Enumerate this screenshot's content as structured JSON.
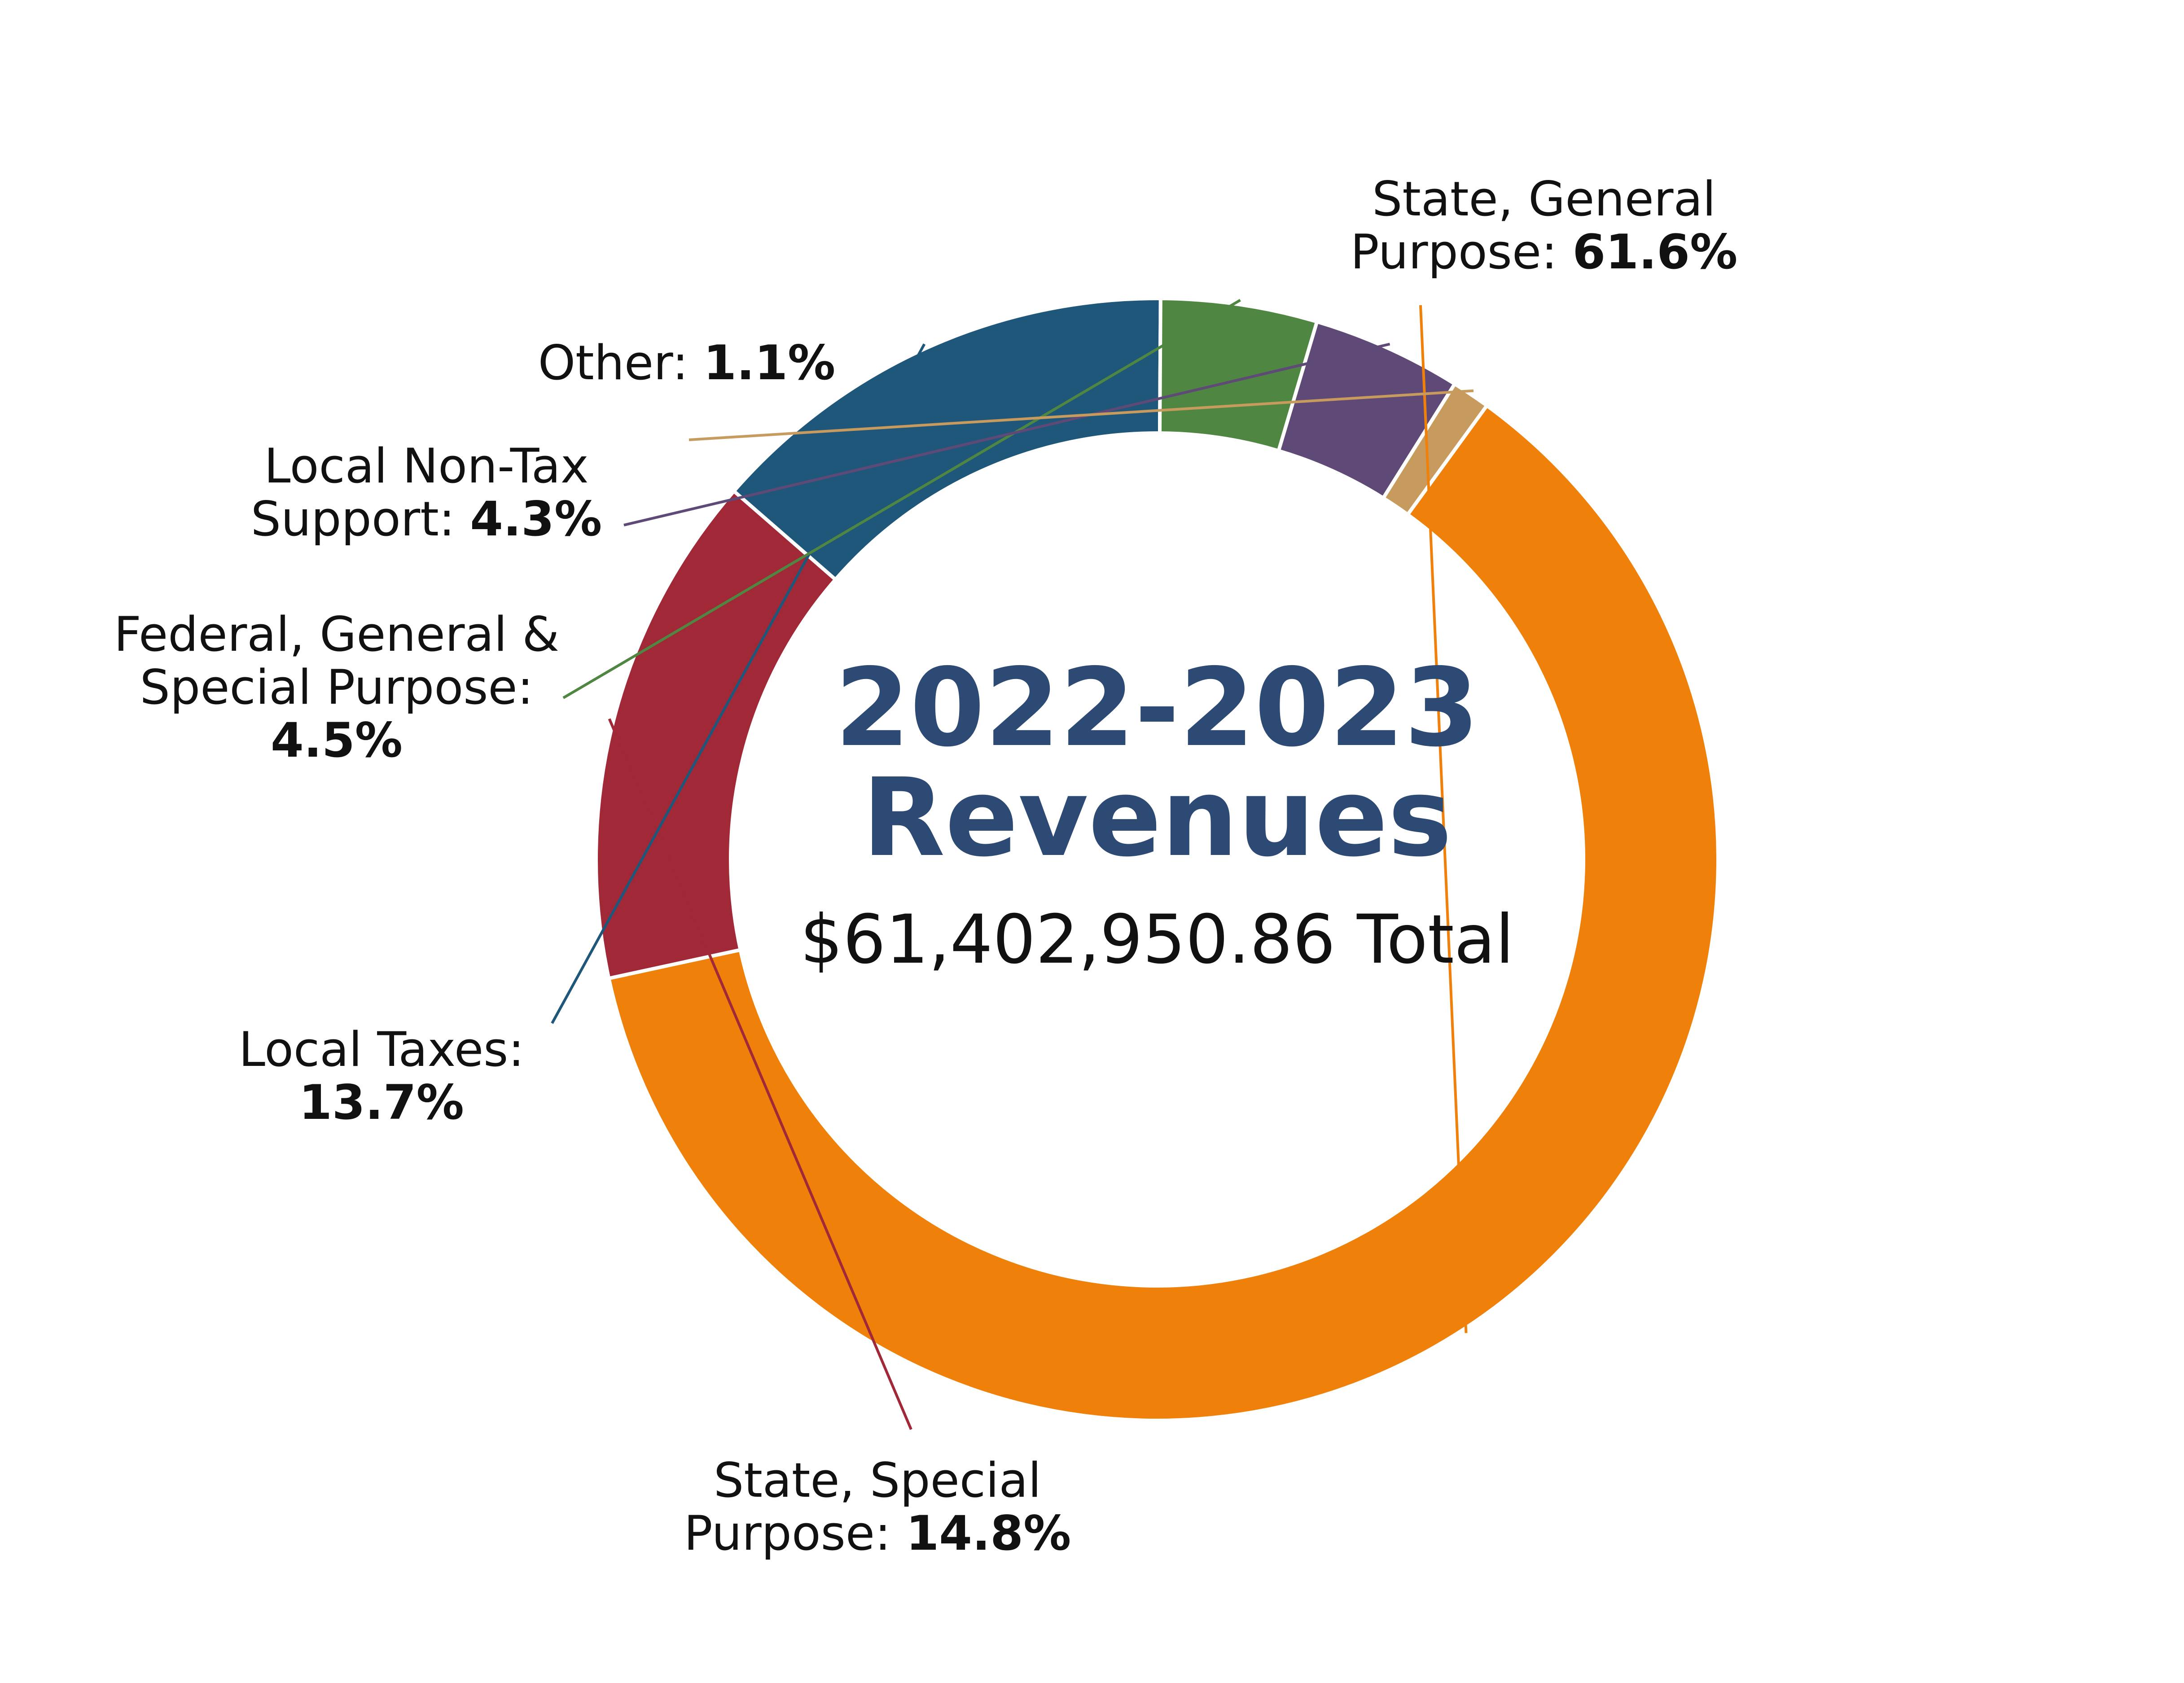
{
  "chart_data": {
    "type": "pie",
    "title_lines": [
      "2022-2023",
      "Revenues"
    ],
    "subtitle": "$61,402,950.86 Total",
    "slices": [
      {
        "label_lines": [
          "State, General",
          "Purpose: "
        ],
        "pct_text": "61.6%",
        "value": 61.6,
        "color": "#ef810b"
      },
      {
        "label_lines": [
          "State, Special",
          "Purpose: "
        ],
        "pct_text": "14.8%",
        "value": 14.8,
        "color": "#a12837"
      },
      {
        "label_lines": [
          "Local Taxes:"
        ],
        "pct_text": "13.7%",
        "value": 13.7,
        "color": "#1e577a"
      },
      {
        "label_lines": [
          "Federal, General &",
          "Special Purpose:"
        ],
        "pct_text": "4.5%",
        "value": 4.5,
        "color": "#4f8641"
      },
      {
        "label_lines": [
          "Local Non-Tax",
          "Support: "
        ],
        "pct_text": "4.3%",
        "value": 4.3,
        "color": "#5f4a77"
      },
      {
        "label_lines": [
          "Other: "
        ],
        "pct_text": "1.1%",
        "value": 1.1,
        "color": "#c79a5d"
      }
    ]
  }
}
